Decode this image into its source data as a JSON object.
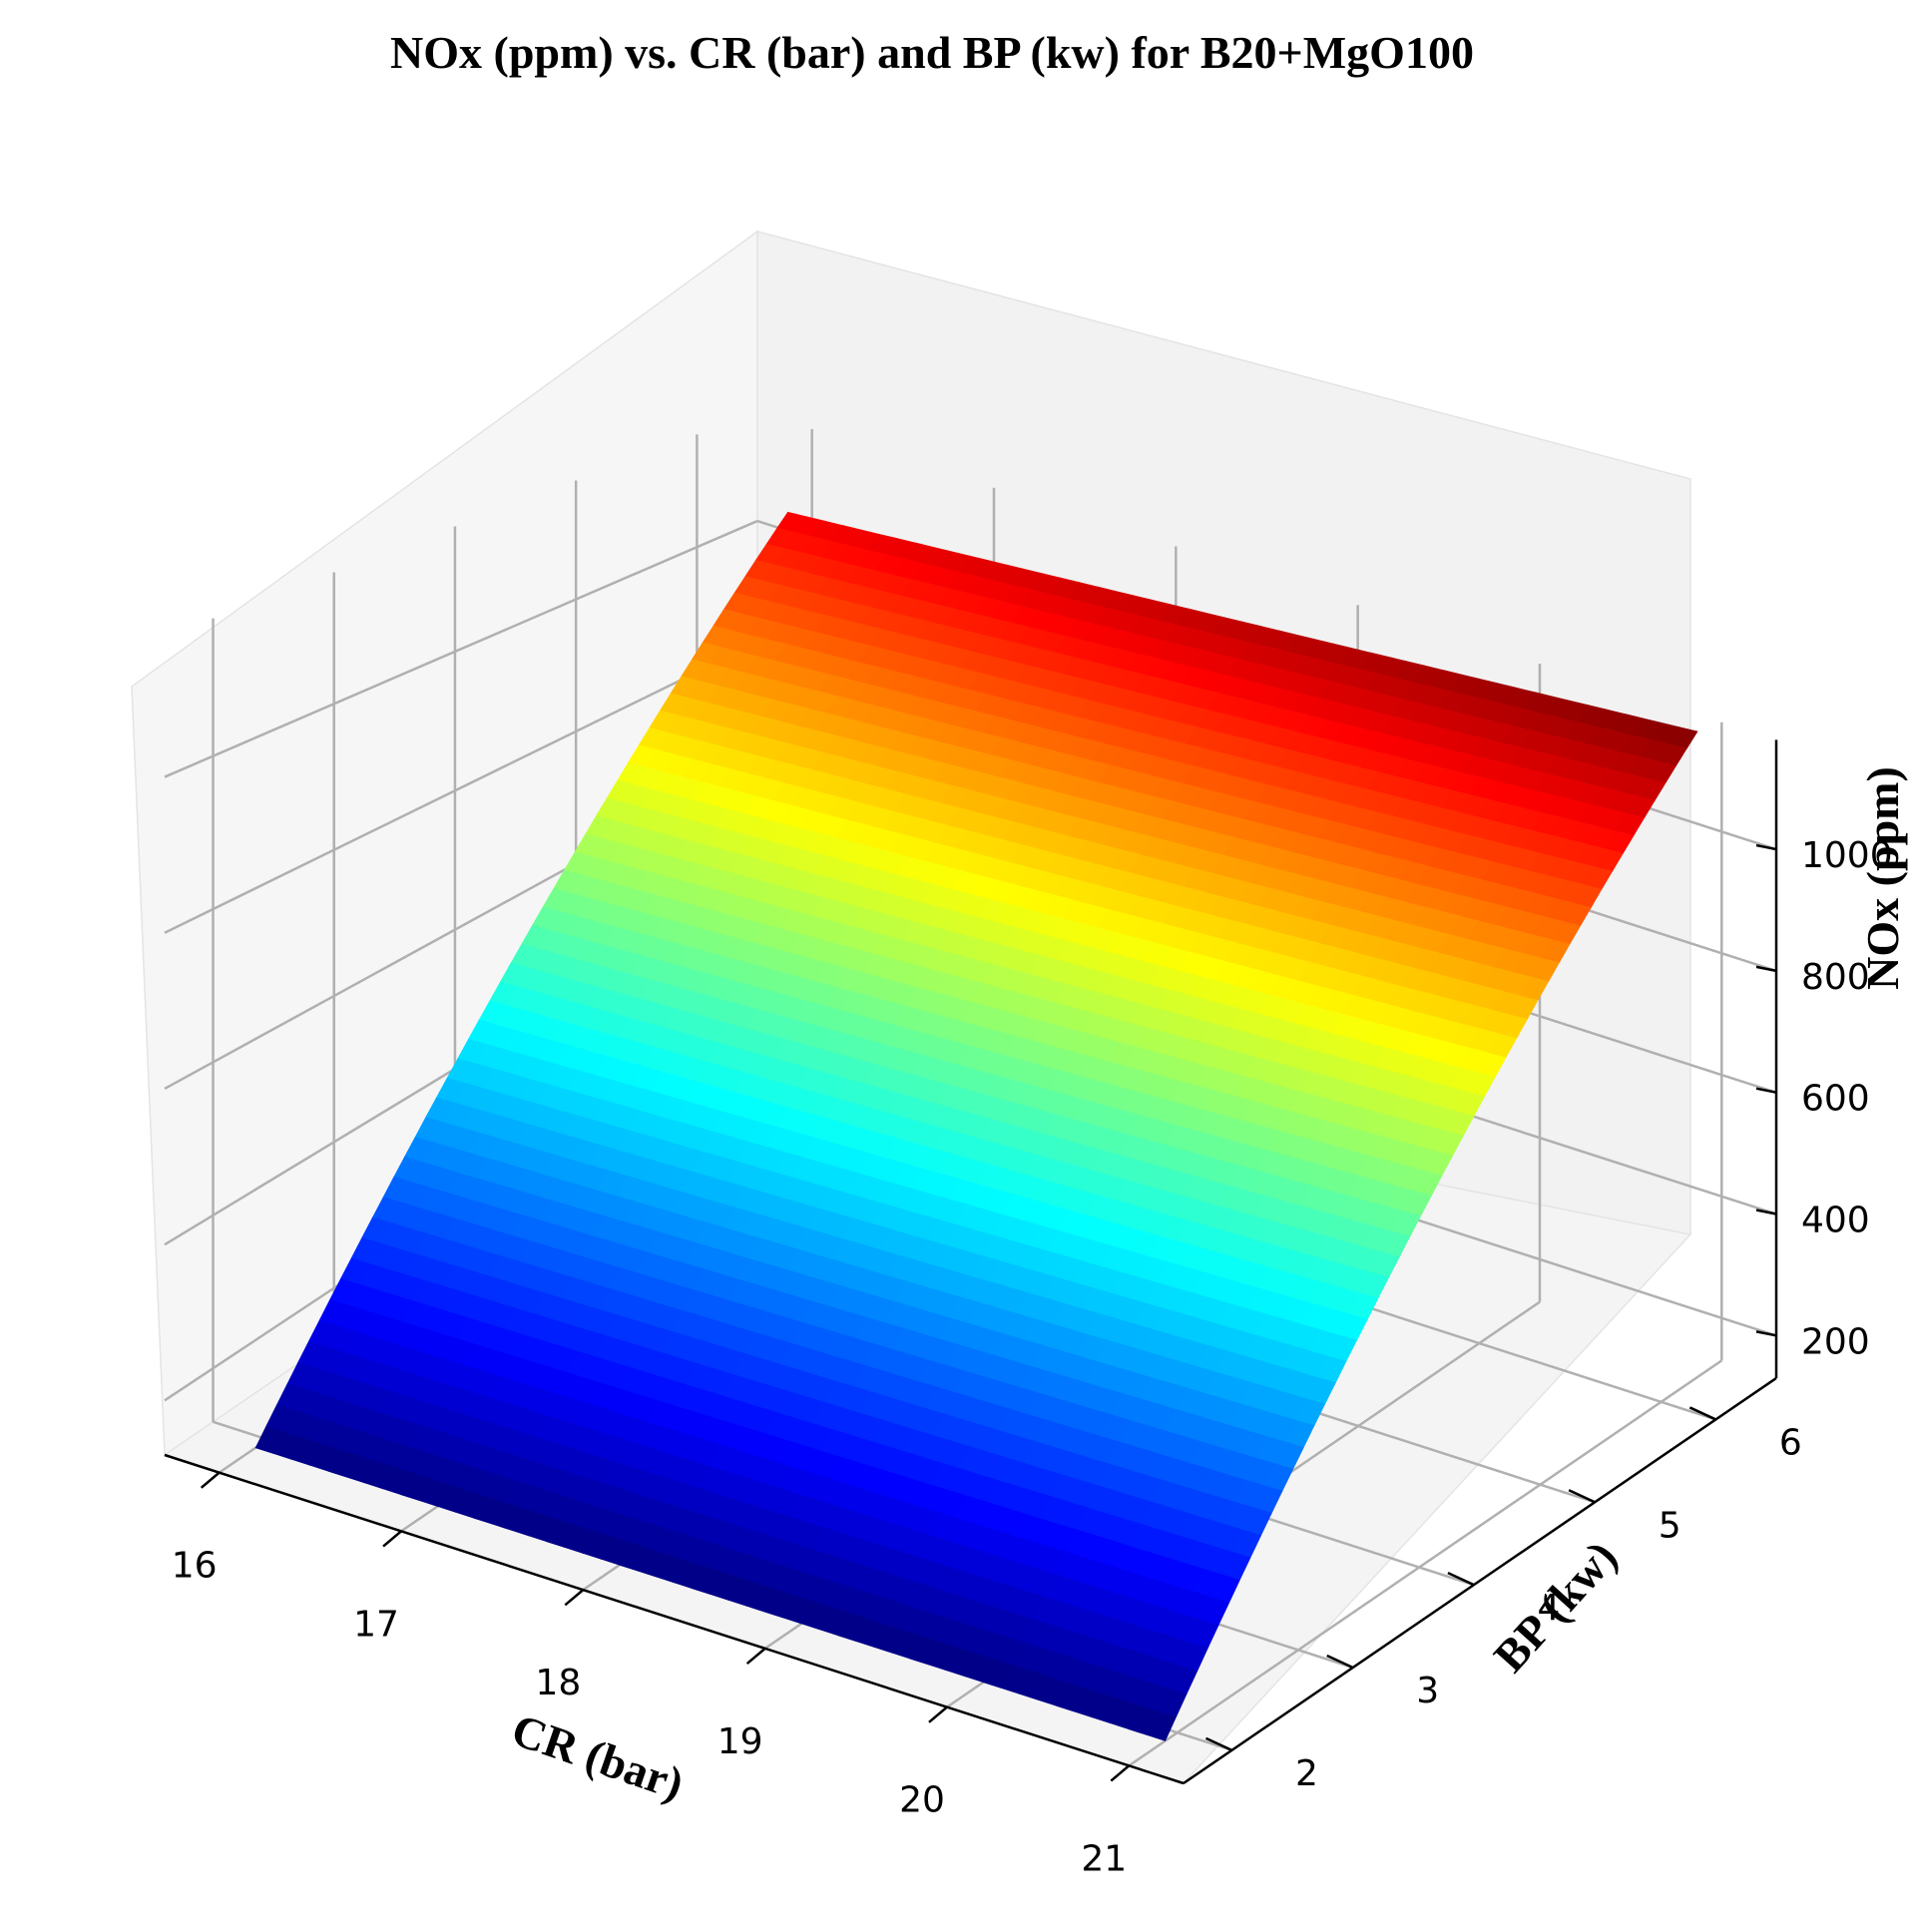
{
  "chart_data": {
    "type": "surface",
    "title": "NOx (ppm) vs. CR (bar) and BP (kw) for B20+MgO100",
    "xlabel": "CR (bar)",
    "ylabel": "BP (kw)",
    "zlabel": "NOx (ppm)",
    "xlim": [
      15.7,
      21.3
    ],
    "ylim": [
      1.6,
      6.5
    ],
    "zlim": [
      130,
      1180
    ],
    "x_ticks": [
      16,
      17,
      18,
      19,
      20,
      21
    ],
    "y_ticks": [
      2,
      3,
      4,
      5,
      6
    ],
    "z_ticks": [
      200,
      400,
      600,
      800,
      1000
    ],
    "grid": true,
    "colormap": "jet",
    "x_range": [
      16,
      21
    ],
    "y_range": [
      1.9,
      6.3
    ],
    "surface_corners": [
      {
        "x": 16,
        "y": 1.9,
        "z": 130
      },
      {
        "x": 21,
        "y": 1.9,
        "z": 130
      },
      {
        "x": 16,
        "y": 6.3,
        "z": 1060
      },
      {
        "x": 21,
        "y": 6.3,
        "z": 1180
      }
    ]
  }
}
